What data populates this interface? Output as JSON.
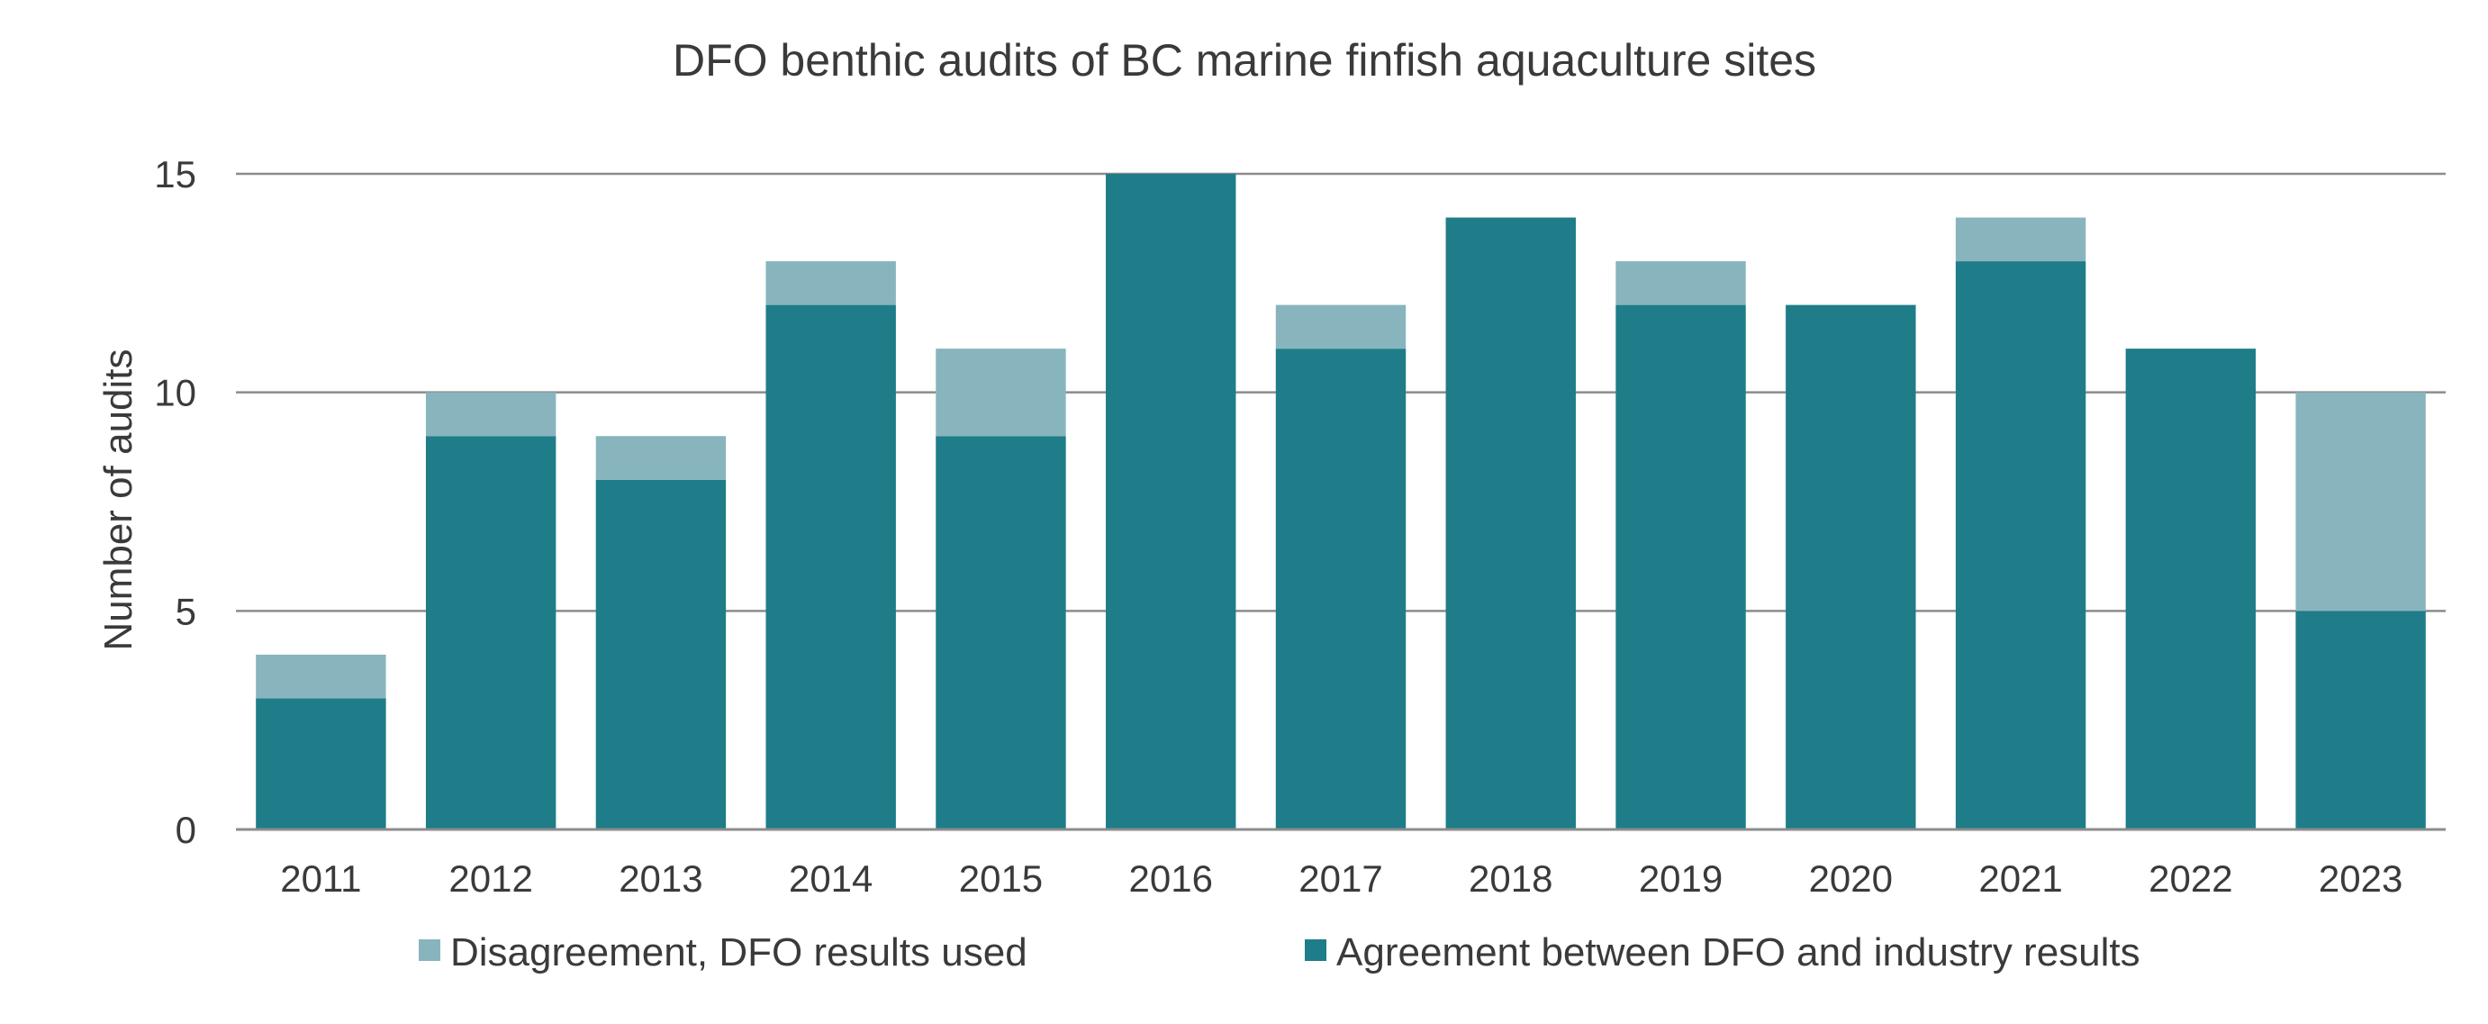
{
  "chart_data": {
    "type": "bar",
    "stacked": true,
    "title": "DFO benthic audits of BC marine finfish aquaculture sites",
    "xlabel": "",
    "ylabel": "Number of audits",
    "ylim": [
      0,
      15
    ],
    "yticks": [
      0,
      5,
      10,
      15
    ],
    "grid": true,
    "legend_position": "bottom",
    "categories": [
      "2011",
      "2012",
      "2013",
      "2014",
      "2015",
      "2016",
      "2017",
      "2018",
      "2019",
      "2020",
      "2021",
      "2022",
      "2023"
    ],
    "series": [
      {
        "name": "Agreement between DFO and industry results",
        "color": "#1e7d88",
        "values": [
          3,
          9,
          8,
          12,
          9,
          15,
          11,
          14,
          12,
          12,
          13,
          11,
          5
        ]
      },
      {
        "name": "Disagreement, DFO results used",
        "color": "#88b5bd",
        "values": [
          1,
          1,
          1,
          1,
          2,
          0,
          1,
          0,
          1,
          0,
          1,
          0,
          5
        ]
      }
    ],
    "legend_order": [
      1,
      0
    ]
  }
}
